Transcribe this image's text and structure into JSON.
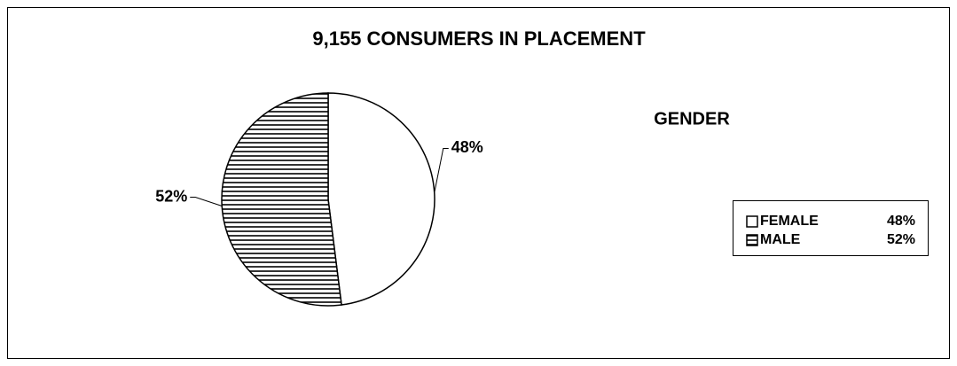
{
  "chart_data": {
    "type": "pie",
    "title": "9,155 CONSUMERS IN PLACEMENT",
    "subtitle": "GENDER",
    "categories": [
      "FEMALE",
      "MALE"
    ],
    "values": [
      48,
      52
    ],
    "value_labels": [
      "48%",
      "52%"
    ],
    "colors": [
      "#ffffff",
      "#000000"
    ],
    "patterns": [
      "solid",
      "horizontal"
    ],
    "legend": "right"
  }
}
